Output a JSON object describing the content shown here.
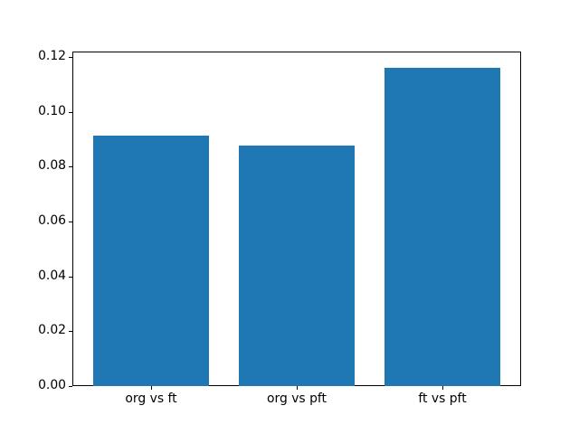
{
  "chart_data": {
    "type": "bar",
    "title": "",
    "xlabel": "",
    "ylabel": "",
    "categories": [
      "org vs ft",
      "org vs pft",
      "ft vs pft"
    ],
    "values": [
      0.0915,
      0.0877,
      0.1162
    ],
    "bar_color": "#1f77b4",
    "bar_width_fraction": 0.8,
    "xlim": [
      -0.54,
      2.54
    ],
    "ylim": [
      0,
      0.122
    ],
    "yticks": [
      0.0,
      0.02,
      0.04,
      0.06,
      0.08,
      0.1,
      0.12
    ],
    "ytick_labels": [
      "0.00",
      "0.02",
      "0.04",
      "0.06",
      "0.08",
      "0.10",
      "0.12"
    ],
    "grid": false,
    "legend": null,
    "spine_color": "#000000",
    "background_color": "#ffffff"
  }
}
